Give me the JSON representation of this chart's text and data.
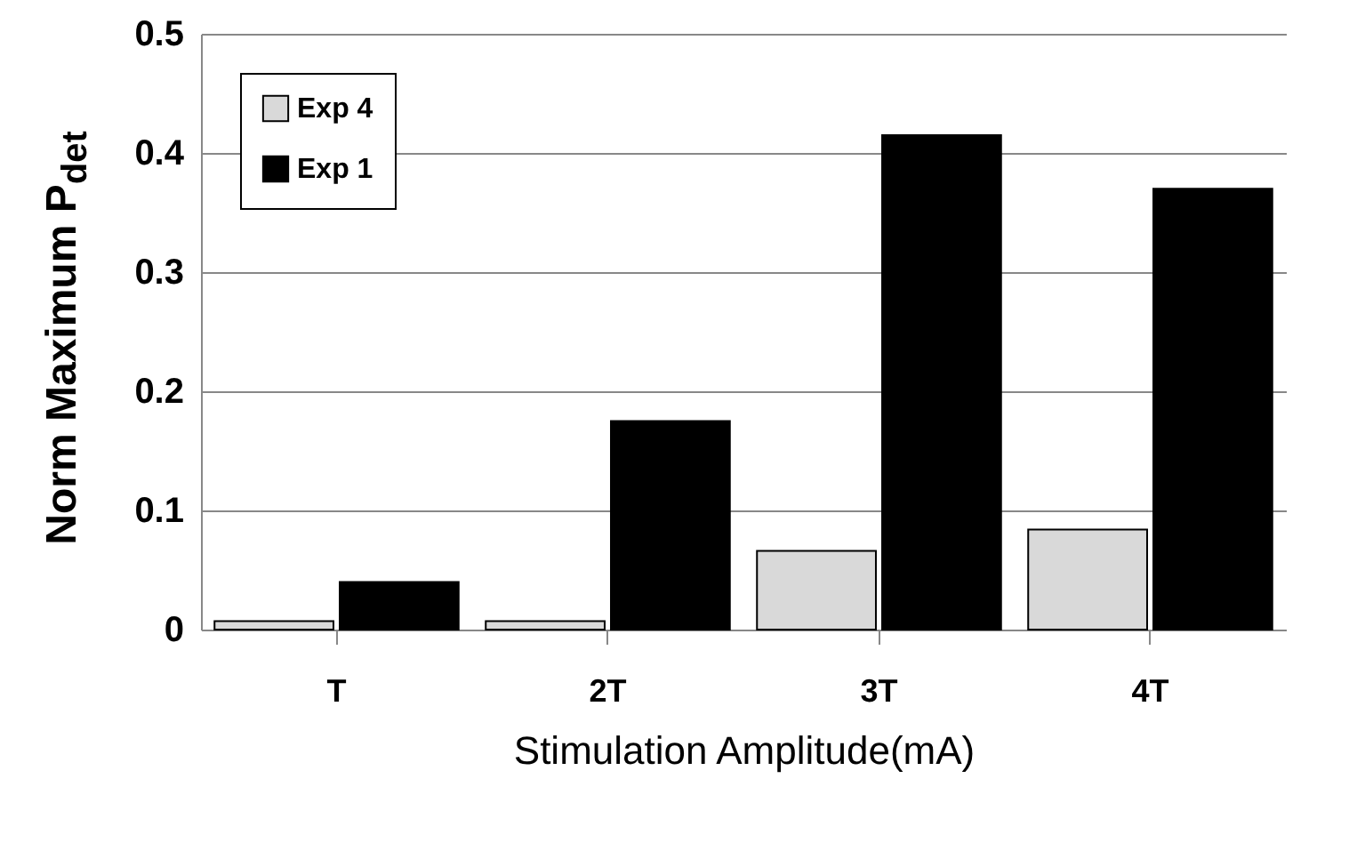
{
  "chart_data": {
    "type": "bar",
    "xlabel": "Stimulation Amplitude(mA)",
    "ylabel": "Norm Maximum P$_{det}$",
    "categories": [
      "T",
      "2T",
      "3T",
      "4T"
    ],
    "series": [
      {
        "name": "Exp 4",
        "color": "#d9d9d9",
        "values": [
          0.007,
          0.007,
          0.066,
          0.084
        ]
      },
      {
        "name": "Exp 1",
        "color": "#000000",
        "values": [
          0.04,
          0.175,
          0.415,
          0.37
        ]
      }
    ],
    "ylim": [
      0,
      0.5
    ],
    "yticks": [
      0,
      0.1,
      0.2,
      0.3,
      0.4,
      0.5
    ],
    "grid": "y",
    "legend": "top left"
  }
}
